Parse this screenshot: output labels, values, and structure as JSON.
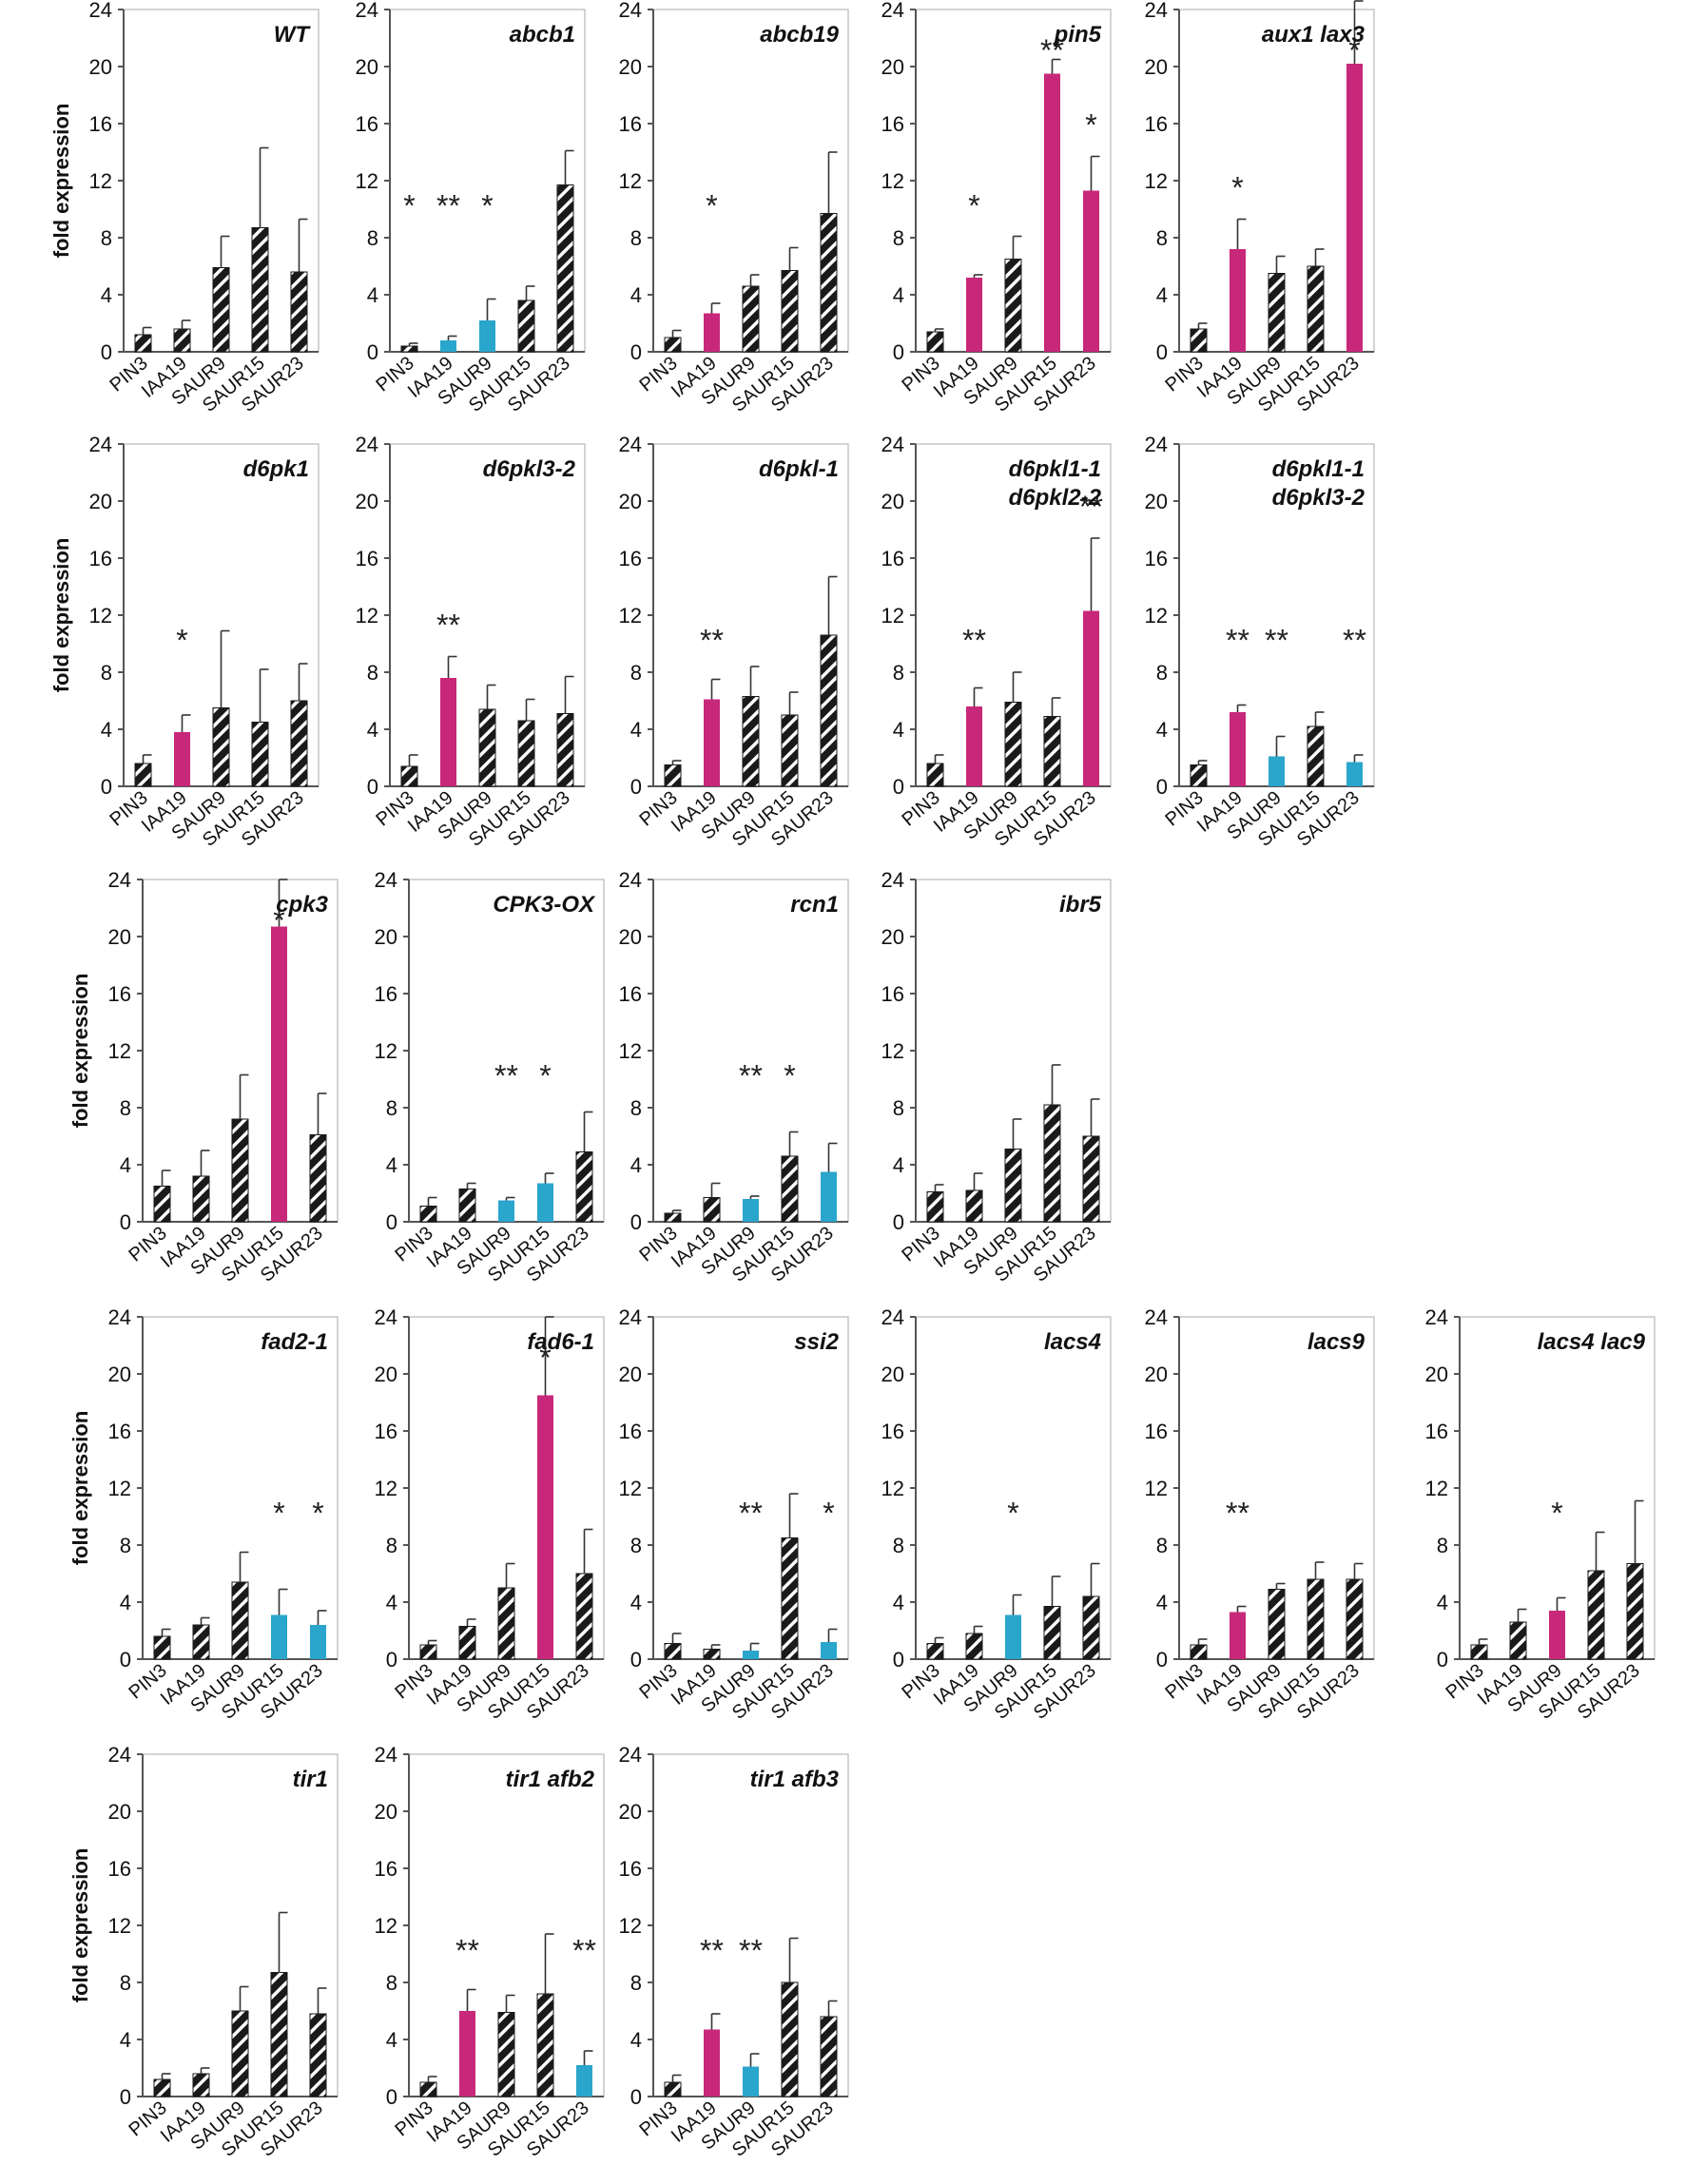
{
  "figure": {
    "ylabel": "fold expression",
    "categories": [
      "PIN3",
      "IAA19",
      "SAUR9",
      "SAUR15",
      "SAUR23"
    ],
    "ylim": [
      0,
      24
    ],
    "yticks": [
      0,
      4,
      8,
      12,
      16,
      20,
      24
    ],
    "colors": {
      "hatched": "#1a1a1a",
      "up": "#c8287a",
      "down": "#2aa5cc",
      "axis": "#555555"
    }
  },
  "chart_data": [
    {
      "type": "bar",
      "title": "WT",
      "values": [
        1.2,
        1.6,
        5.9,
        8.7,
        5.6
      ],
      "errors": [
        0.5,
        0.6,
        2.2,
        5.6,
        3.7
      ],
      "colors": [
        "hatch",
        "hatch",
        "hatch",
        "hatch",
        "hatch"
      ],
      "stars": [
        "",
        "",
        "",
        "",
        ""
      ]
    },
    {
      "type": "bar",
      "title": "abcb1",
      "values": [
        0.4,
        0.8,
        2.2,
        3.6,
        11.7
      ],
      "errors": [
        0.2,
        0.3,
        1.5,
        1.0,
        2.4
      ],
      "colors": [
        "hatch",
        "down",
        "down",
        "hatch",
        "hatch"
      ],
      "stars": [
        "*",
        "**",
        "*",
        "",
        ""
      ]
    },
    {
      "type": "bar",
      "title": "abcb19",
      "values": [
        1.0,
        2.7,
        4.6,
        5.7,
        9.7
      ],
      "errors": [
        0.5,
        0.7,
        0.8,
        1.6,
        4.3
      ],
      "colors": [
        "hatch",
        "up",
        "hatch",
        "hatch",
        "hatch"
      ],
      "stars": [
        "",
        "*",
        "",
        "",
        ""
      ]
    },
    {
      "type": "bar",
      "title": "pin5",
      "values": [
        1.4,
        5.2,
        6.5,
        19.5,
        11.3
      ],
      "errors": [
        0.2,
        0.2,
        1.6,
        1.0,
        2.4
      ],
      "colors": [
        "hatch",
        "up",
        "hatch",
        "up",
        "up"
      ],
      "stars": [
        "",
        "*",
        "",
        "**",
        "*"
      ]
    },
    {
      "type": "bar",
      "title": "aux1 lax3",
      "values": [
        1.6,
        7.2,
        5.5,
        6.0,
        20.2
      ],
      "errors": [
        0.4,
        2.1,
        1.2,
        1.2,
        4.4
      ],
      "colors": [
        "hatch",
        "up",
        "hatch",
        "hatch",
        "up"
      ],
      "stars": [
        "",
        "*",
        "",
        "",
        "*"
      ]
    },
    {
      "type": "bar",
      "title": "d6pk1",
      "values": [
        1.6,
        3.8,
        5.5,
        4.5,
        6.0
      ],
      "errors": [
        0.6,
        1.2,
        5.4,
        3.7,
        2.6
      ],
      "colors": [
        "hatch",
        "up",
        "hatch",
        "hatch",
        "hatch"
      ],
      "stars": [
        "",
        "*",
        "",
        "",
        ""
      ]
    },
    {
      "type": "bar",
      "title": "d6pkl3-2",
      "values": [
        1.4,
        7.6,
        5.4,
        4.6,
        5.1
      ],
      "errors": [
        0.8,
        1.5,
        1.7,
        1.5,
        2.6
      ],
      "colors": [
        "hatch",
        "up",
        "hatch",
        "hatch",
        "hatch"
      ],
      "stars": [
        "",
        "**",
        "",
        "",
        ""
      ]
    },
    {
      "type": "bar",
      "title": "d6pkl-1",
      "values": [
        1.5,
        6.1,
        6.3,
        5.0,
        10.6
      ],
      "errors": [
        0.3,
        1.4,
        2.1,
        1.6,
        4.1
      ],
      "colors": [
        "hatch",
        "up",
        "hatch",
        "hatch",
        "hatch"
      ],
      "stars": [
        "",
        "**",
        "",
        "",
        ""
      ]
    },
    {
      "type": "bar",
      "title": "d6pkl1-1",
      "title2": "d6pkl2-2",
      "values": [
        1.6,
        5.6,
        5.9,
        4.9,
        12.3
      ],
      "errors": [
        0.6,
        1.3,
        2.1,
        1.3,
        5.1
      ],
      "colors": [
        "hatch",
        "up",
        "hatch",
        "hatch",
        "up"
      ],
      "stars": [
        "",
        "**",
        "",
        "",
        "**"
      ]
    },
    {
      "type": "bar",
      "title": "d6pkl1-1",
      "title2": "d6pkl3-2",
      "values": [
        1.5,
        5.2,
        2.1,
        4.2,
        1.7
      ],
      "errors": [
        0.3,
        0.5,
        1.4,
        1.0,
        0.5
      ],
      "colors": [
        "hatch",
        "up",
        "down",
        "hatch",
        "down"
      ],
      "stars": [
        "",
        "**",
        "**",
        "",
        "**"
      ]
    },
    {
      "type": "bar",
      "title": "cpk3",
      "values": [
        2.5,
        3.2,
        7.2,
        20.7,
        6.1
      ],
      "errors": [
        1.1,
        1.8,
        3.1,
        3.3,
        2.9
      ],
      "colors": [
        "hatch",
        "hatch",
        "hatch",
        "up",
        "hatch"
      ],
      "stars": [
        "",
        "",
        "",
        "*",
        ""
      ]
    },
    {
      "type": "bar",
      "title": "CPK3-OX",
      "values": [
        1.1,
        2.3,
        1.5,
        2.7,
        4.9
      ],
      "errors": [
        0.6,
        0.4,
        0.2,
        0.7,
        2.8
      ],
      "colors": [
        "hatch",
        "hatch",
        "down",
        "down",
        "hatch"
      ],
      "stars": [
        "",
        "",
        "**",
        "*",
        ""
      ]
    },
    {
      "type": "bar",
      "title": "rcn1",
      "values": [
        0.6,
        1.7,
        1.6,
        4.6,
        3.5
      ],
      "errors": [
        0.2,
        1.0,
        0.2,
        1.7,
        2.0
      ],
      "colors": [
        "hatch",
        "hatch",
        "down",
        "hatch",
        "down"
      ],
      "stars": [
        "",
        "",
        "**",
        "*",
        ""
      ]
    },
    {
      "type": "bar",
      "title": "ibr5",
      "values": [
        2.1,
        2.2,
        5.1,
        8.2,
        6.0
      ],
      "errors": [
        0.5,
        1.2,
        2.1,
        2.8,
        2.6
      ],
      "colors": [
        "hatch",
        "hatch",
        "hatch",
        "hatch",
        "hatch"
      ],
      "stars": [
        "",
        "",
        "",
        "",
        ""
      ]
    },
    {
      "type": "bar",
      "title": "fad2-1",
      "values": [
        1.6,
        2.4,
        5.4,
        3.1,
        2.4
      ],
      "errors": [
        0.5,
        0.5,
        2.1,
        1.8,
        1.0
      ],
      "colors": [
        "hatch",
        "hatch",
        "hatch",
        "down",
        "down"
      ],
      "stars": [
        "",
        "",
        "",
        "*",
        "*"
      ]
    },
    {
      "type": "bar",
      "title": "fad6-1",
      "values": [
        1.0,
        2.3,
        5.0,
        18.5,
        6.0
      ],
      "errors": [
        0.3,
        0.5,
        1.7,
        5.5,
        3.1
      ],
      "colors": [
        "hatch",
        "hatch",
        "hatch",
        "up",
        "hatch"
      ],
      "stars": [
        "",
        "",
        "",
        "*",
        ""
      ]
    },
    {
      "type": "bar",
      "title": "ssi2",
      "values": [
        1.1,
        0.7,
        0.6,
        8.5,
        1.2
      ],
      "errors": [
        0.7,
        0.3,
        0.5,
        3.1,
        0.9
      ],
      "colors": [
        "hatch",
        "hatch",
        "down",
        "hatch",
        "down"
      ],
      "stars": [
        "",
        "",
        "**",
        "",
        "*"
      ]
    },
    {
      "type": "bar",
      "title": "lacs4",
      "values": [
        1.1,
        1.8,
        3.1,
        3.7,
        4.4
      ],
      "errors": [
        0.4,
        0.5,
        1.4,
        2.1,
        2.3
      ],
      "colors": [
        "hatch",
        "hatch",
        "down",
        "hatch",
        "hatch"
      ],
      "stars": [
        "",
        "",
        "*",
        "",
        ""
      ]
    },
    {
      "type": "bar",
      "title": "lacs9",
      "values": [
        1.0,
        3.3,
        4.9,
        5.6,
        5.6
      ],
      "errors": [
        0.4,
        0.4,
        0.4,
        1.2,
        1.1
      ],
      "colors": [
        "hatch",
        "up",
        "hatch",
        "hatch",
        "hatch"
      ],
      "stars": [
        "",
        "**",
        "",
        "",
        ""
      ]
    },
    {
      "type": "bar",
      "title": "lacs4 lac9",
      "values": [
        1.0,
        2.6,
        3.4,
        6.2,
        6.7
      ],
      "errors": [
        0.4,
        0.9,
        0.9,
        2.7,
        4.4
      ],
      "colors": [
        "hatch",
        "hatch",
        "up",
        "hatch",
        "hatch"
      ],
      "stars": [
        "",
        "",
        "*",
        "",
        ""
      ]
    },
    {
      "type": "bar",
      "title": "tir1",
      "values": [
        1.2,
        1.6,
        6.0,
        8.7,
        5.8
      ],
      "errors": [
        0.4,
        0.4,
        1.7,
        4.2,
        1.8
      ],
      "colors": [
        "hatch",
        "hatch",
        "hatch",
        "hatch",
        "hatch"
      ],
      "stars": [
        "",
        "",
        "",
        "",
        ""
      ]
    },
    {
      "type": "bar",
      "title": "tir1 afb2",
      "values": [
        1.0,
        6.0,
        5.9,
        7.2,
        2.2
      ],
      "errors": [
        0.4,
        1.5,
        1.2,
        4.2,
        1.0
      ],
      "colors": [
        "hatch",
        "up",
        "hatch",
        "hatch",
        "down"
      ],
      "stars": [
        "",
        "**",
        "",
        "",
        "**"
      ]
    },
    {
      "type": "bar",
      "title": "tir1 afb3",
      "values": [
        1.0,
        4.7,
        2.1,
        8.0,
        5.6
      ],
      "errors": [
        0.5,
        1.1,
        0.9,
        3.1,
        1.1
      ],
      "colors": [
        "hatch",
        "up",
        "down",
        "hatch",
        "hatch"
      ],
      "stars": [
        "",
        "**",
        "**",
        "",
        ""
      ]
    }
  ]
}
